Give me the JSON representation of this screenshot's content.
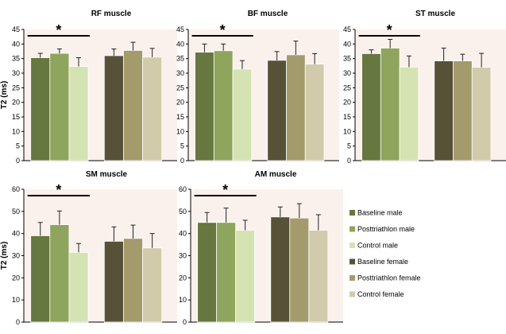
{
  "chart_data": [
    {
      "type": "bar",
      "title": "RF muscle",
      "ylabel": "T2 (ms)",
      "ylim": [
        0,
        45
      ],
      "yticks": [
        0,
        5,
        10,
        15,
        20,
        25,
        30,
        35,
        40,
        45
      ],
      "series_names": [
        "Baseline male",
        "Posttriathlon male",
        "Control male",
        "Baseline female",
        "Posttriathlon female",
        "Control female"
      ],
      "values": [
        35.3,
        36.8,
        32.3,
        36.0,
        37.8,
        35.5
      ],
      "errors": [
        1.5,
        1.5,
        3.0,
        2.3,
        2.8,
        3.0
      ],
      "significance": {
        "label": "*",
        "from": 0,
        "to": 2
      }
    },
    {
      "type": "bar",
      "title": "BF muscle",
      "ylabel": "",
      "ylim": [
        0,
        45
      ],
      "yticks": [
        0,
        5,
        10,
        15,
        20,
        25,
        30,
        35,
        40,
        45
      ],
      "series_names": [
        "Baseline male",
        "Posttriathlon male",
        "Control male",
        "Baseline female",
        "Posttriathlon female",
        "Control female"
      ],
      "values": [
        37.2,
        37.7,
        31.4,
        34.4,
        36.3,
        33.1
      ],
      "errors": [
        2.8,
        2.3,
        2.9,
        3.0,
        4.7,
        3.6
      ],
      "significance": {
        "label": "*",
        "from": 0,
        "to": 2
      }
    },
    {
      "type": "bar",
      "title": "ST muscle",
      "ylabel": "",
      "ylim": [
        0,
        45
      ],
      "yticks": [
        0,
        5,
        10,
        15,
        20,
        25,
        30,
        35,
        40,
        45
      ],
      "series_names": [
        "Baseline male",
        "Posttriathlon male",
        "Control male",
        "Baseline female",
        "Posttriathlon female",
        "Control female"
      ],
      "values": [
        36.7,
        38.6,
        32.1,
        34.2,
        34.2,
        32.0
      ],
      "errors": [
        1.3,
        3.0,
        3.8,
        4.4,
        2.3,
        4.8
      ],
      "significance": {
        "label": "*",
        "from": 0,
        "to": 2
      }
    },
    {
      "type": "bar",
      "title": "SM muscle",
      "ylabel": "T2 (ms)",
      "ylim": [
        0,
        60
      ],
      "yticks": [
        0,
        10,
        20,
        30,
        40,
        50,
        60
      ],
      "series_names": [
        "Baseline male",
        "Posttriathlon male",
        "Control male",
        "Baseline female",
        "Posttriathlon female",
        "Control female"
      ],
      "values": [
        39.0,
        44.0,
        31.5,
        36.5,
        37.8,
        33.5
      ],
      "errors": [
        6.0,
        6.2,
        4.0,
        6.5,
        6.0,
        6.5
      ],
      "significance": {
        "label": "*",
        "from": 0,
        "to": 2
      }
    },
    {
      "type": "bar",
      "title": "AM muscle",
      "ylabel": "",
      "ylim": [
        0,
        60
      ],
      "yticks": [
        0,
        10,
        20,
        30,
        40,
        50,
        60
      ],
      "series_names": [
        "Baseline male",
        "Posttriathlon male",
        "Control male",
        "Baseline female",
        "Posttriathlon female",
        "Control female"
      ],
      "values": [
        45.0,
        45.0,
        41.5,
        47.5,
        47.0,
        41.5
      ],
      "errors": [
        4.5,
        6.5,
        4.5,
        4.5,
        6.5,
        7.0
      ],
      "significance": {
        "label": "*",
        "from": 0,
        "to": 2
      }
    }
  ],
  "legend": [
    {
      "label": "Baseline male",
      "color": "#66773f"
    },
    {
      "label": "Posttriathlon male",
      "color": "#8fa45c"
    },
    {
      "label": "Control male",
      "color": "#d5e3b2"
    },
    {
      "label": "Baseline female",
      "color": "#575137"
    },
    {
      "label": "Posttriathlon female",
      "color": "#a49b6d"
    },
    {
      "label": "Control female",
      "color": "#d1cbab"
    }
  ],
  "colors": {
    "plot_background": "#fbf1ec",
    "bar_outline": "#ffffff",
    "axis": "#000000"
  }
}
